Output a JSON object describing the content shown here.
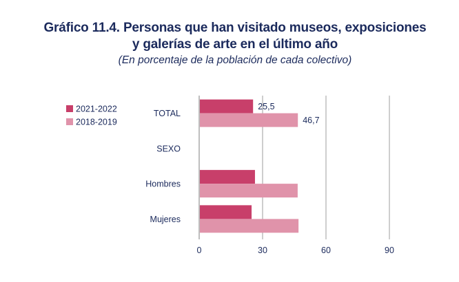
{
  "chart_data": {
    "type": "bar",
    "orientation": "horizontal",
    "title": "Gráfico 11.4. Personas que han visitado museos, exposiciones",
    "title_line2": "y galerías de arte en el último año",
    "subtitle": "(En porcentaje de la población de cada colectivo)",
    "categories": [
      "TOTAL",
      "SEXO",
      "Hombres",
      "Mujeres"
    ],
    "series": [
      {
        "name": "2021-2022",
        "color": "#c83f6a",
        "values": [
          25.5,
          null,
          26.4,
          24.8
        ]
      },
      {
        "name": "2018-2019",
        "color": "#e093aa",
        "values": [
          46.7,
          null,
          46.6,
          47.0
        ]
      }
    ],
    "data_labels": [
      {
        "category": "TOTAL",
        "series": "2021-2022",
        "text": "25,5"
      },
      {
        "category": "TOTAL",
        "series": "2018-2019",
        "text": "46,7"
      }
    ],
    "xlim": [
      0,
      90
    ],
    "xticks": [
      0,
      30,
      60,
      90
    ],
    "xtick_labels": [
      "0",
      "30",
      "60",
      "90"
    ],
    "xlabel": "",
    "ylabel": "",
    "grid": "vertical",
    "legend": {
      "placement": "top-left",
      "entries": [
        "2021-2022",
        "2018-2019"
      ]
    }
  }
}
